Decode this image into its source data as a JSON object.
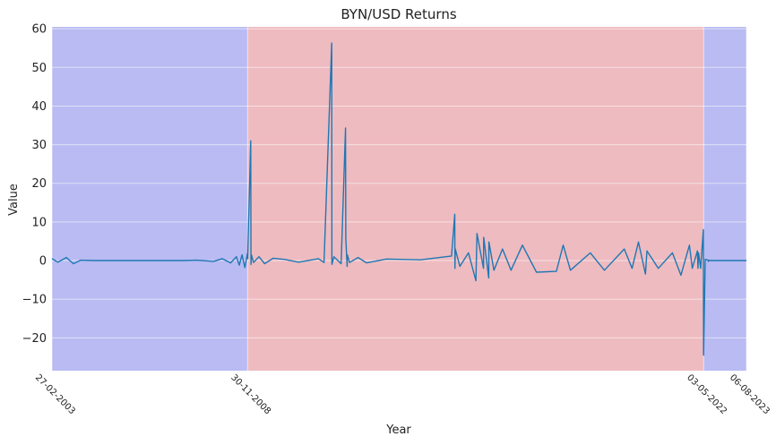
{
  "chart_data": {
    "type": "line",
    "title": "BYN/USD Returns",
    "xlabel": "Year",
    "ylabel": "Value",
    "xlim": [
      "2003-02-27",
      "2023-08-06"
    ],
    "ylim": [
      -28.5,
      60.5
    ],
    "grid": true,
    "yticks": [
      -20,
      -10,
      0,
      10,
      20,
      30,
      40,
      50,
      60
    ],
    "ytick_labels": [
      "−20",
      "−10",
      "0",
      "10",
      "20",
      "30",
      "40",
      "50",
      "60"
    ],
    "xticks": [
      {
        "date": "2003-02-27",
        "label": "27-02-2003"
      },
      {
        "date": "2008-11-30",
        "label": "30-11-2008"
      },
      {
        "date": "2022-05-03",
        "label": "03-05-2022"
      },
      {
        "date": "2023-08-06",
        "label": "06-08-2023"
      }
    ],
    "regions": [
      {
        "start": "2003-02-27",
        "end": "2008-11-30",
        "color": "#b9bbf2"
      },
      {
        "start": "2008-11-30",
        "end": "2022-05-03",
        "color": "#eebbc0"
      },
      {
        "start": "2022-05-03",
        "end": "2023-08-06",
        "color": "#b9bbf2"
      }
    ],
    "series": [
      {
        "color": "#1f77b4",
        "x": [
          "2003-02-27",
          "2003-05-01",
          "2003-08-01",
          "2003-10-15",
          "2004-01-01",
          "2004-06-01",
          "2005-01-01",
          "2006-01-01",
          "2007-01-01",
          "2007-06-01",
          "2007-12-01",
          "2008-03-01",
          "2008-06-01",
          "2008-08-01",
          "2008-09-01",
          "2008-10-01",
          "2008-11-01",
          "2008-11-28",
          "2008-12-01",
          "2009-01-02",
          "2009-01-05",
          "2009-01-10",
          "2009-02-01",
          "2009-04-01",
          "2009-06-01",
          "2009-09-01",
          "2010-01-01",
          "2010-06-01",
          "2011-01-01",
          "2011-03-01",
          "2011-05-23",
          "2011-05-25",
          "2011-06-15",
          "2011-09-01",
          "2011-10-19",
          "2011-10-21",
          "2011-11-05",
          "2011-11-07",
          "2011-12-01",
          "2012-03-01",
          "2012-06-01",
          "2013-01-01",
          "2014-01-01",
          "2014-12-01",
          "2015-01-05",
          "2015-01-07",
          "2015-01-10",
          "2015-03-01",
          "2015-06-01",
          "2015-08-20",
          "2015-09-01",
          "2015-11-10",
          "2015-11-12",
          "2016-01-05",
          "2016-01-07",
          "2016-03-01",
          "2016-06-01",
          "2016-09-01",
          "2017-01-01",
          "2017-06-01",
          "2018-01-01",
          "2018-03-15",
          "2018-06-01",
          "2019-01-01",
          "2019-06-01",
          "2020-01-01",
          "2020-03-25",
          "2020-06-01",
          "2020-08-15",
          "2020-09-01",
          "2021-01-01",
          "2021-06-01",
          "2021-09-01",
          "2021-12-01",
          "2022-01-01",
          "2022-02-25",
          "2022-03-03",
          "2022-03-10",
          "2022-04-01",
          "2022-04-30",
          "2022-05-03",
          "2022-05-20",
          "2022-06-20",
          "2022-06-22",
          "2022-07-05",
          "2022-07-07",
          "2022-08-01",
          "2022-10-01",
          "2023-01-01",
          "2023-04-01",
          "2023-08-06"
        ],
        "y": [
          0.5,
          -0.4,
          0.8,
          -0.8,
          0.1,
          0,
          0,
          0,
          0,
          0.1,
          -0.2,
          0.5,
          -0.6,
          1.0,
          -1.2,
          1.5,
          -1.8,
          1.8,
          0.5,
          31,
          -1.0,
          1.5,
          -0.5,
          1.0,
          -0.8,
          0.6,
          0.3,
          -0.4,
          0.5,
          -0.5,
          56.3,
          -1.0,
          1.0,
          -0.8,
          34.3,
          5.8,
          -1.5,
          1.5,
          -0.5,
          0.8,
          -0.6,
          0.4,
          0.2,
          1.2,
          12,
          -2,
          3,
          -1.5,
          2.0,
          -5.2,
          7,
          -2,
          6,
          -4.5,
          4.8,
          -2.5,
          3,
          -2.5,
          4,
          -3,
          -2.8,
          4,
          -2.5,
          2,
          -2.5,
          3,
          -2,
          4.8,
          -3.5,
          2.5,
          -2,
          2,
          -3.8,
          4,
          -2,
          2.5,
          -2,
          2,
          -2,
          8,
          -24.5,
          0.3,
          0.1,
          -0.2,
          0.1,
          0,
          0,
          0,
          0,
          0,
          0
        ]
      }
    ]
  }
}
